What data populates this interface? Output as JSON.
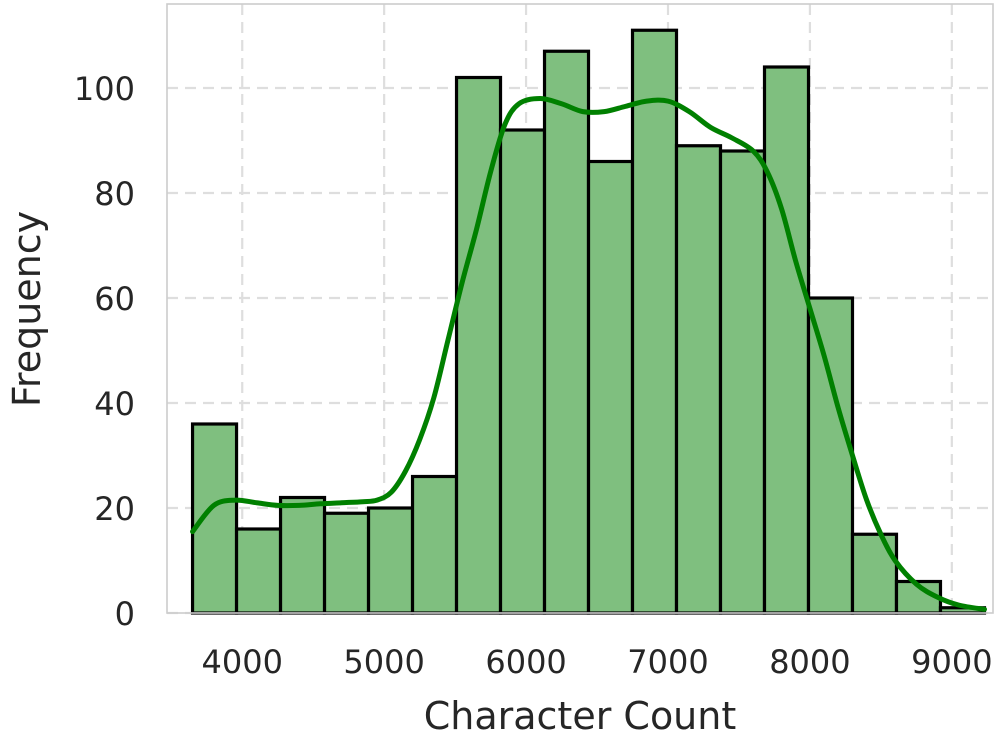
{
  "chart_data": {
    "type": "bar",
    "subtype": "histogram-with-kde",
    "xlabel": "Character Count",
    "ylabel": "Frequency",
    "xlim": [
      3470,
      9290
    ],
    "ylim": [
      0,
      116
    ],
    "x_ticks": [
      4000,
      5000,
      6000,
      7000,
      8000,
      9000
    ],
    "y_ticks": [
      0,
      20,
      40,
      60,
      80,
      100
    ],
    "grid": true,
    "bar_color": "#7fbf7f",
    "bar_edge_color": "#000000",
    "kde_color": "#008000",
    "bins": {
      "start": 3650,
      "width": 310,
      "counts": [
        36,
        16,
        22,
        19,
        20,
        26,
        102,
        92,
        107,
        86,
        111,
        89,
        88,
        104,
        60,
        15,
        6,
        1
      ]
    },
    "kde": {
      "x": [
        3650,
        3800,
        3950,
        4100,
        4250,
        4400,
        4550,
        4700,
        4850,
        4950,
        5050,
        5150,
        5250,
        5350,
        5450,
        5550,
        5650,
        5750,
        5850,
        5950,
        6100,
        6250,
        6400,
        6550,
        6700,
        6850,
        7000,
        7150,
        7300,
        7450,
        7600,
        7700,
        7800,
        7900,
        8000,
        8100,
        8200,
        8300,
        8400,
        8500,
        8600,
        8750,
        8900,
        9050,
        9230
      ],
      "y": [
        15.5,
        20.5,
        21.5,
        21,
        20.5,
        20.5,
        20.8,
        21,
        21.2,
        21.5,
        23,
        27,
        33,
        41,
        52,
        63,
        73,
        84,
        93,
        97,
        98,
        97,
        95.5,
        95.5,
        96.5,
        97.5,
        97.5,
        95.5,
        92.5,
        90.5,
        88,
        84,
        77,
        67,
        58,
        49,
        39,
        30,
        21.5,
        15,
        10,
        5.5,
        3,
        1.5,
        0.7
      ]
    }
  }
}
